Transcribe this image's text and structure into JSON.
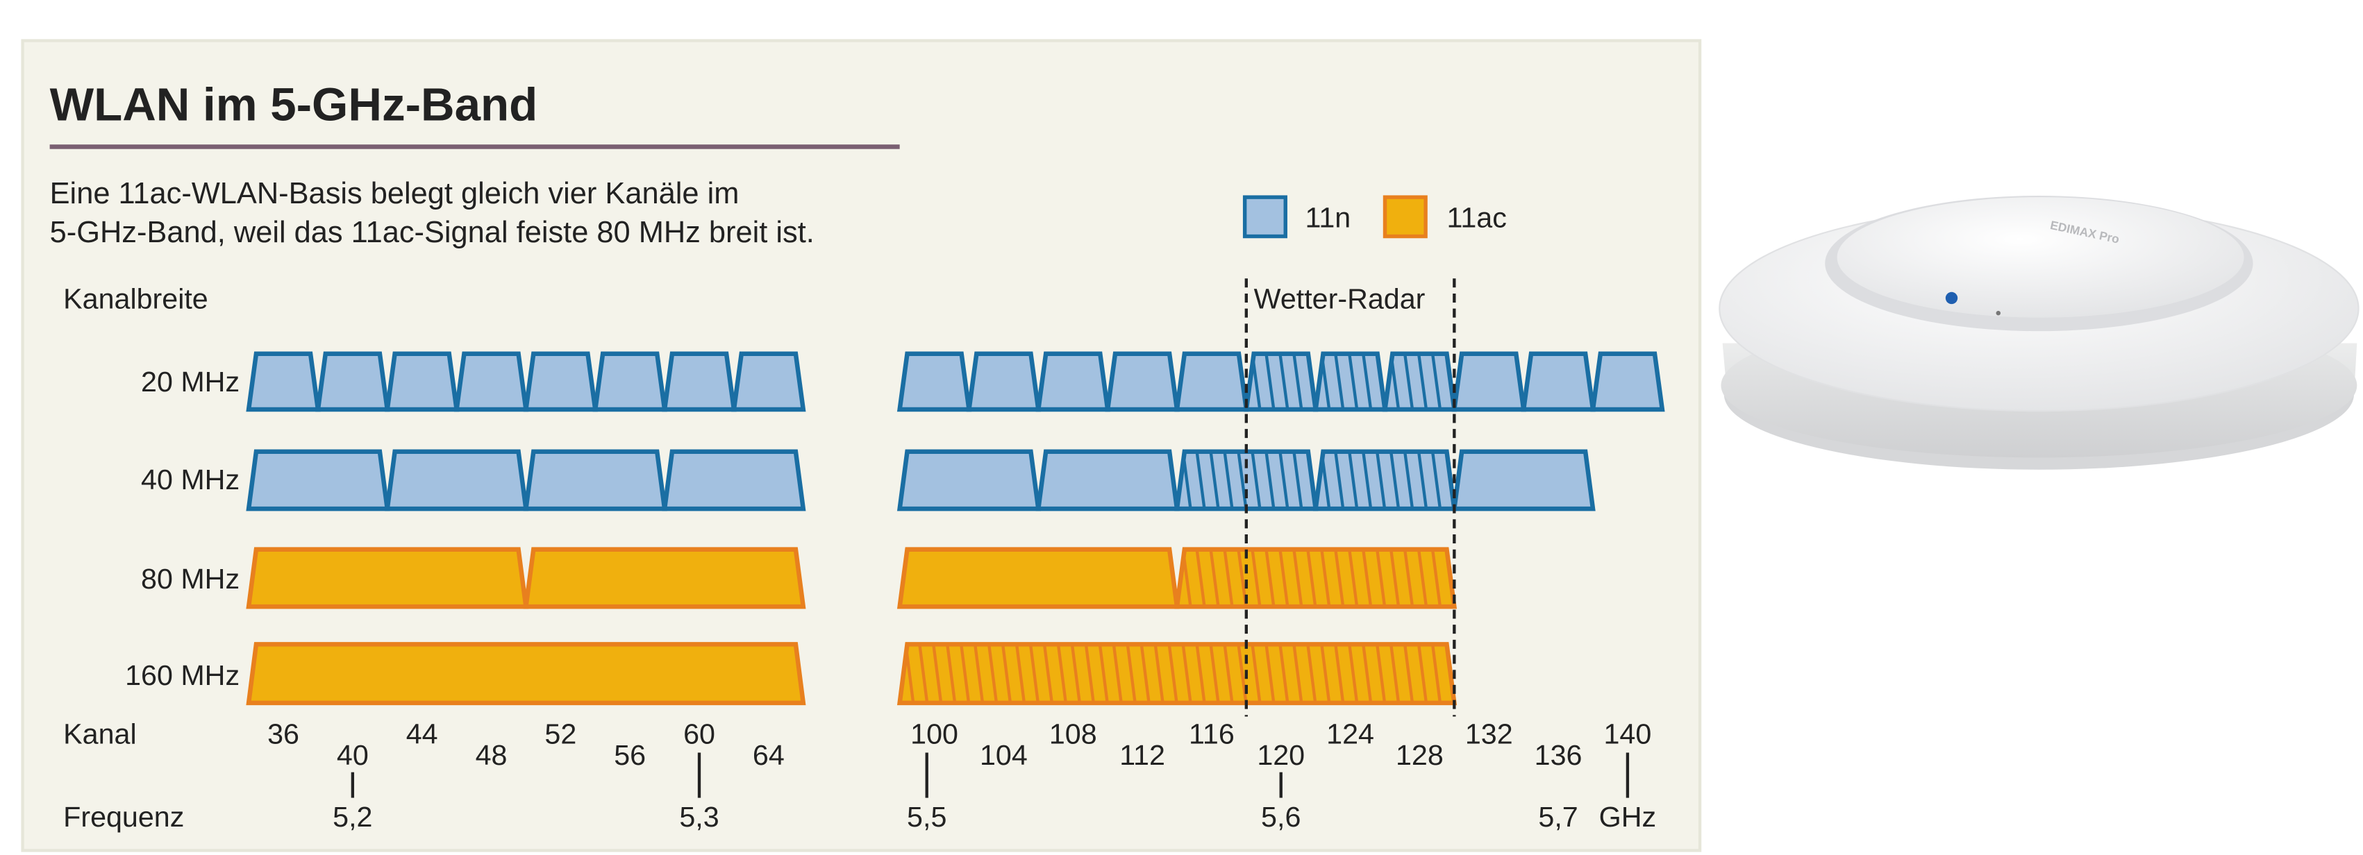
{
  "title": "WLAN im 5-GHz-Band",
  "subtitle": [
    "Eine 11ac-WLAN-Basis belegt gleich vier Kanäle im",
    "5-GHz-Band, weil das 11ac-Signal feiste 80 MHz breit ist."
  ],
  "legend": [
    {
      "label": "11n",
      "fill": "#a3c1e0",
      "stroke": "#1a6ea3"
    },
    {
      "label": "11ac",
      "fill": "#f0b00e",
      "stroke": "#e8801e"
    }
  ],
  "colors": {
    "panel": "#f4f3ea",
    "title_rule": "#7a5f72",
    "text": "#222222"
  },
  "axis_labels": {
    "channel_width": "Kanalbreite",
    "channel": "Kanal",
    "frequency": "Frequenz"
  },
  "radar": {
    "label": "Wetter-Radar",
    "from_channel": 120,
    "to_channel": 128
  },
  "rows": [
    {
      "label": "20 MHz",
      "standard": "11n",
      "blocks": [
        [
          36,
          36
        ],
        [
          40,
          40
        ],
        [
          44,
          44
        ],
        [
          48,
          48
        ],
        [
          52,
          52
        ],
        [
          56,
          56
        ],
        [
          60,
          60
        ],
        [
          64,
          64
        ],
        [
          100,
          100
        ],
        [
          104,
          104
        ],
        [
          108,
          108
        ],
        [
          112,
          112
        ],
        [
          116,
          116
        ],
        [
          120,
          120,
          true
        ],
        [
          124,
          124,
          true
        ],
        [
          128,
          128,
          true
        ],
        [
          132,
          132
        ],
        [
          136,
          136
        ],
        [
          140,
          140
        ]
      ]
    },
    {
      "label": "40 MHz",
      "standard": "11n",
      "blocks": [
        [
          36,
          40
        ],
        [
          44,
          48
        ],
        [
          52,
          56
        ],
        [
          60,
          64
        ],
        [
          100,
          104
        ],
        [
          108,
          112
        ],
        [
          116,
          120,
          true
        ],
        [
          124,
          128,
          true
        ],
        [
          132,
          136
        ]
      ]
    },
    {
      "label": "80 MHz",
      "standard": "11ac",
      "blocks": [
        [
          36,
          48
        ],
        [
          52,
          64
        ],
        [
          100,
          112
        ],
        [
          116,
          128,
          true
        ]
      ]
    },
    {
      "label": "160 MHz",
      "standard": "11ac",
      "blocks": [
        [
          36,
          64
        ],
        [
          100,
          128,
          true
        ]
      ]
    }
  ],
  "channels": [
    {
      "ch": 36,
      "upper": true
    },
    {
      "ch": 40,
      "upper": false
    },
    {
      "ch": 44,
      "upper": true
    },
    {
      "ch": 48,
      "upper": false
    },
    {
      "ch": 52,
      "upper": true
    },
    {
      "ch": 56,
      "upper": false
    },
    {
      "ch": 60,
      "upper": true
    },
    {
      "ch": 64,
      "upper": false
    },
    {
      "ch": 100,
      "upper": true
    },
    {
      "ch": 104,
      "upper": false
    },
    {
      "ch": 108,
      "upper": true
    },
    {
      "ch": 112,
      "upper": false
    },
    {
      "ch": 116,
      "upper": true
    },
    {
      "ch": 120,
      "upper": false
    },
    {
      "ch": 124,
      "upper": true
    },
    {
      "ch": 128,
      "upper": false
    },
    {
      "ch": 132,
      "upper": true
    },
    {
      "ch": 136,
      "upper": false
    },
    {
      "ch": 140,
      "upper": true
    }
  ],
  "frequencies": [
    {
      "label": "5,2",
      "ch": 40,
      "tick": true
    },
    {
      "label": "5,3",
      "ch": 60,
      "tick": true
    },
    {
      "label": "5,5",
      "ch": 100,
      "tick": true
    },
    {
      "label": "5,6",
      "ch": 120,
      "tick": true
    },
    {
      "label": "5,7",
      "ch": 136,
      "tick": false
    },
    {
      "label": "GHz",
      "ch": 140,
      "tick": true
    }
  ],
  "product_image": {
    "logo": "EDIMAX Pro"
  }
}
